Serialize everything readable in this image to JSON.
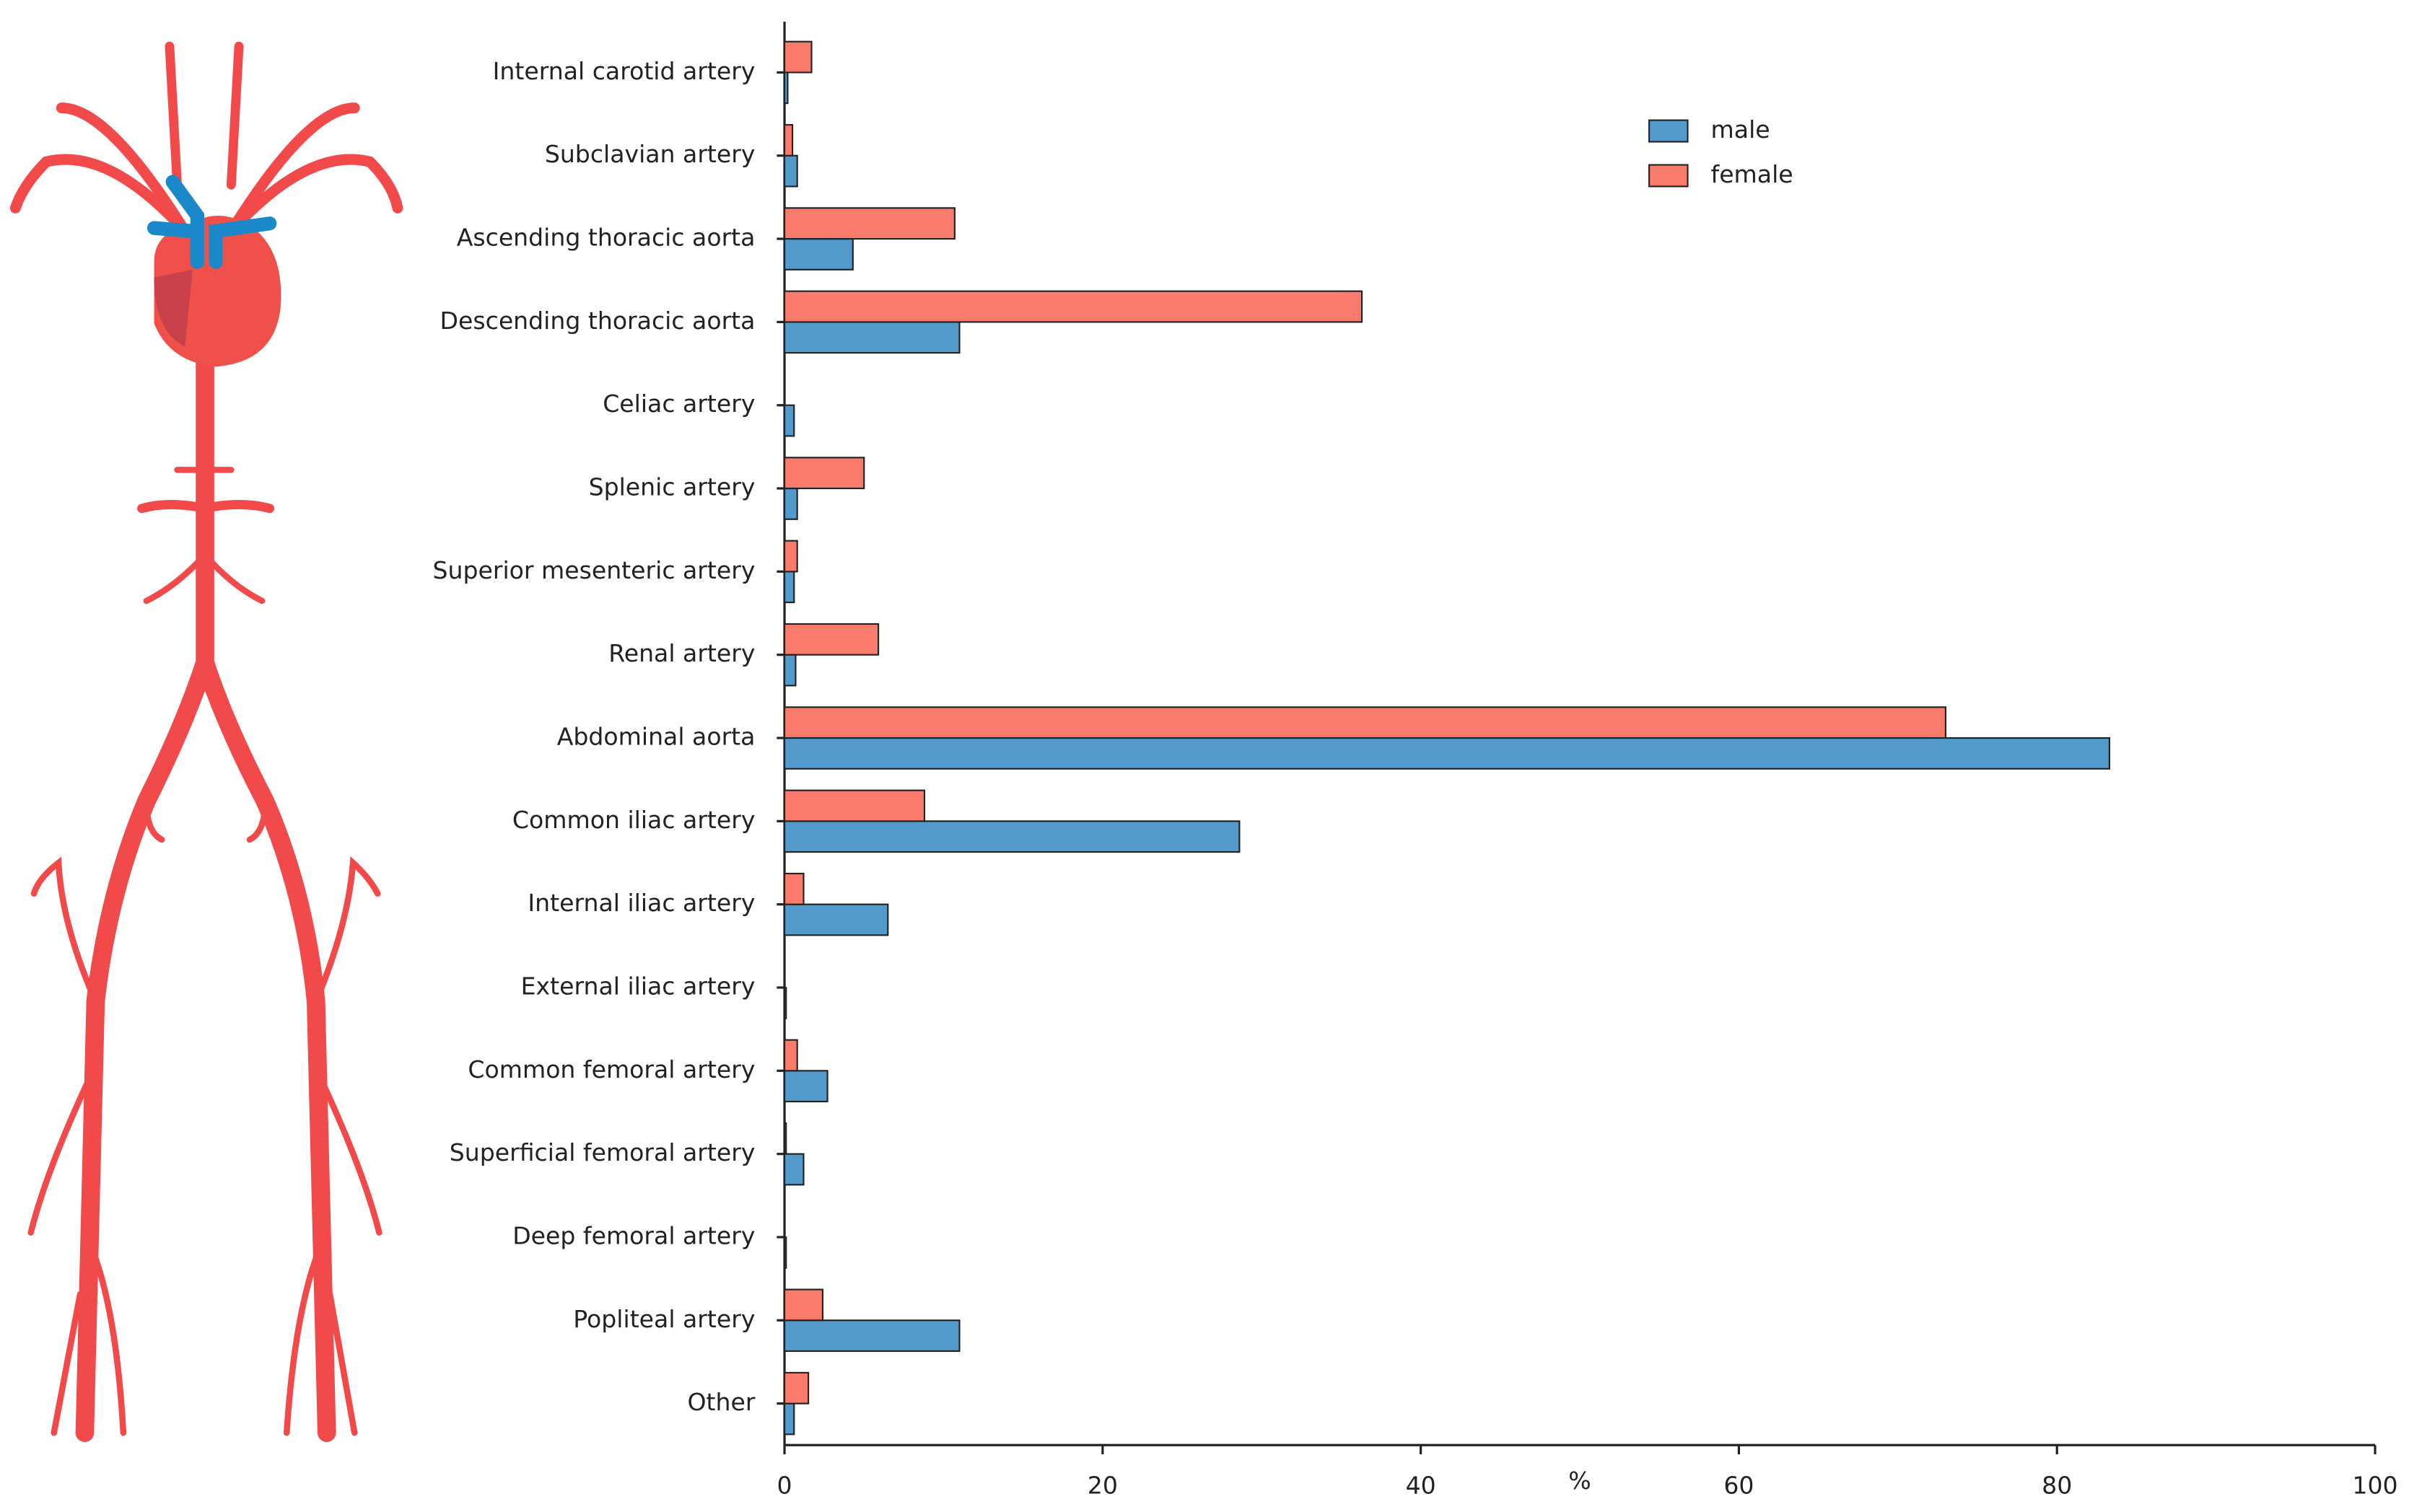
{
  "chart_data": {
    "type": "bar",
    "orientation": "horizontal",
    "categories": [
      "Internal carotid artery",
      "Subclavian artery",
      "Ascending thoracic aorta",
      "Descending thoracic aorta",
      "Celiac artery",
      "Splenic artery",
      "Superior mesenteric artery",
      "Renal artery",
      "Abdominal aorta",
      "Common iliac artery",
      "Internal iliac artery",
      "External iliac artery",
      "Common femoral artery",
      "Superficial femoral artery",
      "Deep femoral artery",
      "Popliteal artery",
      "Other"
    ],
    "series": [
      {
        "name": "male",
        "color": "#5299cc",
        "values": [
          0.2,
          0.8,
          4.3,
          11.0,
          0.6,
          0.8,
          0.6,
          0.7,
          83.3,
          28.6,
          6.5,
          0.1,
          2.7,
          1.2,
          0.1,
          11.0,
          0.6
        ]
      },
      {
        "name": "female",
        "color": "#fa7b6b",
        "values": [
          1.7,
          0.5,
          10.7,
          36.3,
          0,
          5.0,
          0.8,
          5.9,
          73.0,
          8.8,
          1.2,
          0,
          0.8,
          0.1,
          0,
          2.4,
          1.5
        ]
      }
    ],
    "x_label": "%",
    "xlim": [
      0,
      100
    ],
    "xticks": [
      0,
      20,
      40,
      60,
      80,
      100
    ],
    "legend": "upper right"
  }
}
